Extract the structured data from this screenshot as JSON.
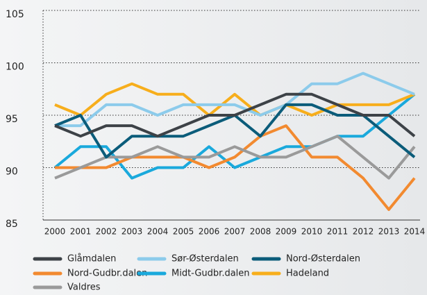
{
  "chart_data": {
    "type": "line",
    "x": [
      "2000",
      "2001",
      "2002",
      "2003",
      "2004",
      "2005",
      "2006",
      "2007",
      "2008",
      "2009",
      "2010",
      "2011",
      "2012",
      "2013",
      "2014"
    ],
    "ylim": [
      85,
      105
    ],
    "yticks": [
      85,
      90,
      95,
      100,
      105
    ],
    "grid": true,
    "series": [
      {
        "name": "Glåmdalen",
        "color": "#3d4247",
        "values": [
          94,
          93,
          94,
          94,
          93,
          94,
          95,
          95,
          96,
          97,
          97,
          96,
          95,
          95,
          93
        ]
      },
      {
        "name": "Sør-Østerdalen",
        "color": "#8ccbeb",
        "values": [
          94,
          94,
          96,
          96,
          95,
          96,
          96,
          96,
          95,
          96,
          98,
          98,
          99,
          98,
          97
        ]
      },
      {
        "name": "Nord-Østerdalen",
        "color": "#0b5c7a",
        "values": [
          94,
          95,
          91,
          93,
          93,
          93,
          94,
          95,
          93,
          96,
          96,
          95,
          95,
          93,
          91
        ]
      },
      {
        "name": "Nord-Gudbr.dalen",
        "color": "#f28a30",
        "values": [
          90,
          90,
          90,
          91,
          91,
          91,
          90,
          91,
          93,
          94,
          91,
          91,
          89,
          86,
          89
        ]
      },
      {
        "name": "Midt-Gudbr.dalen",
        "color": "#1aa9dc",
        "values": [
          90,
          92,
          92,
          89,
          90,
          90,
          92,
          90,
          91,
          92,
          92,
          93,
          93,
          95,
          97
        ]
      },
      {
        "name": "Hadeland",
        "color": "#f7ae1c",
        "values": [
          96,
          95,
          97,
          98,
          97,
          97,
          95,
          97,
          95,
          96,
          95,
          96,
          96,
          96,
          97
        ]
      },
      {
        "name": "Valdres",
        "color": "#9a9a9a",
        "values": [
          89,
          90,
          91,
          91,
          92,
          91,
          91,
          92,
          91,
          91,
          92,
          93,
          91,
          89,
          92
        ]
      }
    ]
  }
}
